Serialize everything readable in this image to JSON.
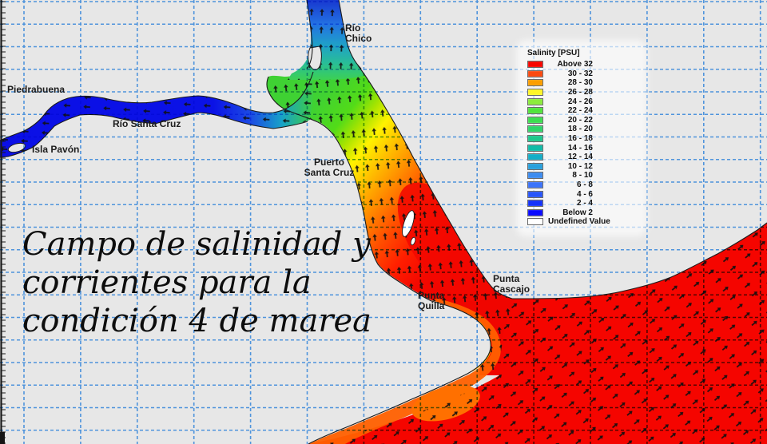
{
  "map_title": "Campo de salinidad y corrientes para la condición 4 de marea",
  "caption": {
    "line1": "Campo de salinidad y",
    "line2": "corrientes para la",
    "line3": "condición 4 de marea"
  },
  "labels": {
    "piedrabuena": "Piedrabuena",
    "rio_santa_cruz": "Río Santa Cruz",
    "isla_pavon": "Isla Pavón",
    "rio_chico_line1": "Río",
    "rio_chico_line2": "Chico",
    "puerto_line1": "Puerto",
    "puerto_line2": "Santa Cruz",
    "cascajo_line1": "Punta",
    "cascajo_line2": "Cascajo",
    "quilla_line1": "Punta",
    "quilla_line2": "Quilla"
  },
  "legend": {
    "title": "Salinity [PSU]",
    "rows": [
      {
        "label": "Above 32",
        "color": "#F80500"
      },
      {
        "label": "30 - 32",
        "color": "#FB4A10"
      },
      {
        "label": "28 - 30",
        "color": "#FC9E00"
      },
      {
        "label": "26 - 28",
        "color": "#FFF528"
      },
      {
        "label": "24 - 26",
        "color": "#8CEC3C"
      },
      {
        "label": "22 - 24",
        "color": "#50E43C"
      },
      {
        "label": "20 - 22",
        "color": "#3CDE50"
      },
      {
        "label": "18 - 20",
        "color": "#2ED668"
      },
      {
        "label": "16 - 18",
        "color": "#1EC88C"
      },
      {
        "label": "14 - 16",
        "color": "#10BCA8"
      },
      {
        "label": "12 - 14",
        "color": "#14AEC8"
      },
      {
        "label": "10 - 12",
        "color": "#28A0DC"
      },
      {
        "label": "8 - 10",
        "color": "#3C8CF0"
      },
      {
        "label": "6 -  8",
        "color": "#3C74FA"
      },
      {
        "label": "4 -  6",
        "color": "#2855FA"
      },
      {
        "label": "2 -  4",
        "color": "#1432FA"
      },
      {
        "label": "Below  2",
        "color": "#0A0AFF"
      },
      {
        "label": "Undefined Value",
        "color": "#FFFFFF"
      }
    ]
  },
  "colors": {
    "land": "#E7E7E7",
    "grid": "#57A3F3",
    "ocean_red": "#F50500",
    "river_blue": "#0B0FE6",
    "coastline": "#1B1B1B",
    "arrow": "#101010"
  }
}
